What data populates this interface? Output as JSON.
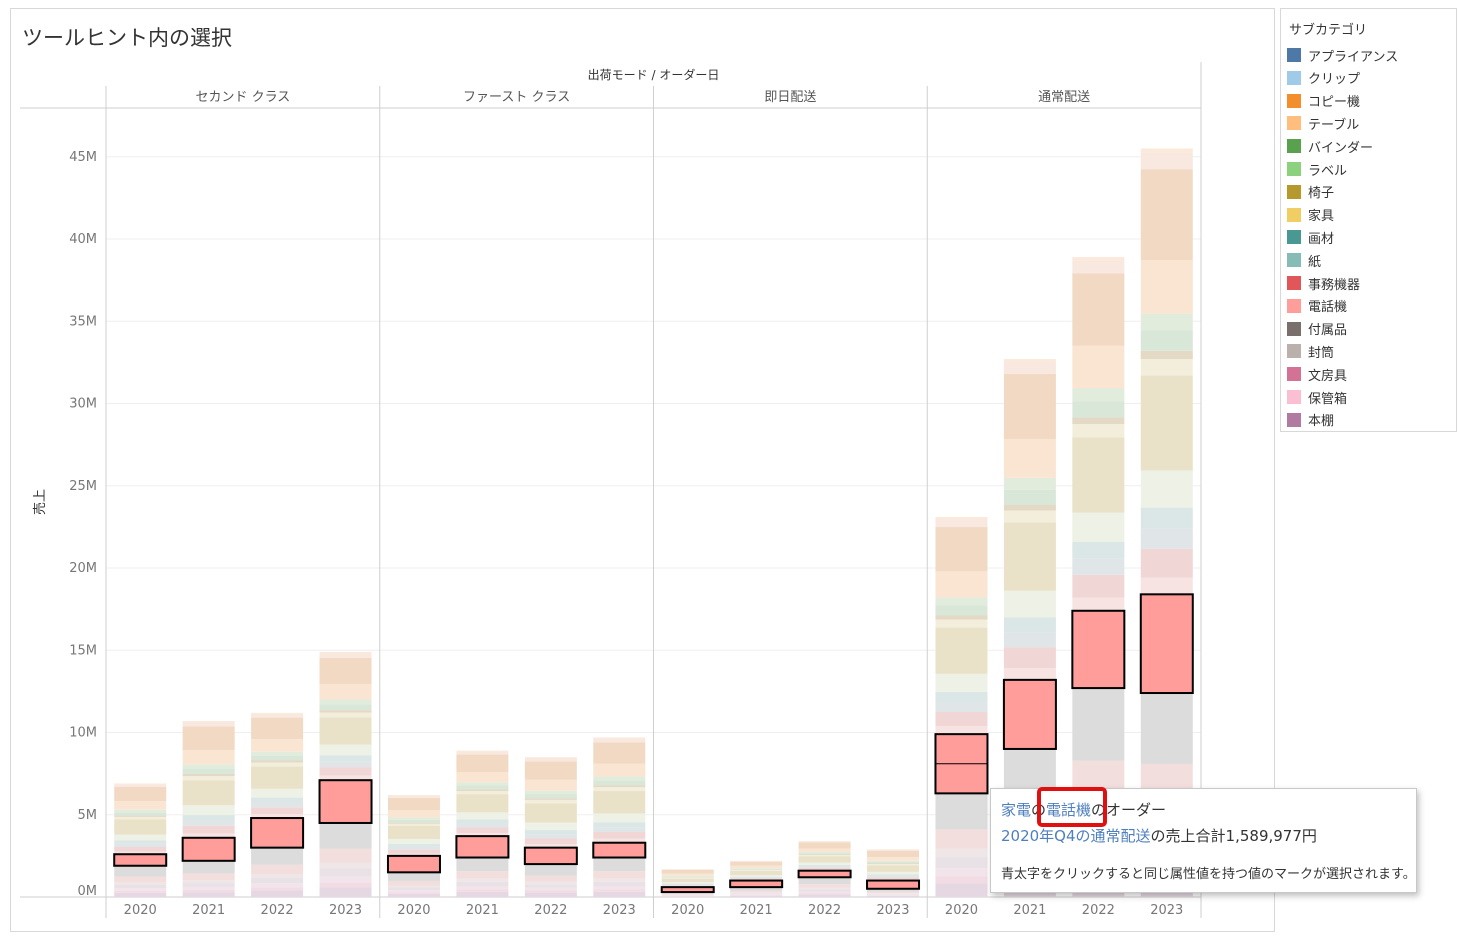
{
  "title": "ツールヒント内の選択",
  "legend": {
    "title": "サブカテゴリ",
    "items": [
      {
        "label": "アプライアンス",
        "color": "#4e79a7"
      },
      {
        "label": "クリップ",
        "color": "#a0cbe8"
      },
      {
        "label": "コピー機",
        "color": "#f28e2b"
      },
      {
        "label": "テーブル",
        "color": "#ffbe7d"
      },
      {
        "label": "バインダー",
        "color": "#59a14f"
      },
      {
        "label": "ラベル",
        "color": "#8cd17d"
      },
      {
        "label": "椅子",
        "color": "#b6992d"
      },
      {
        "label": "家具",
        "color": "#f1ce63"
      },
      {
        "label": "画材",
        "color": "#499894"
      },
      {
        "label": "紙",
        "color": "#86bcb6"
      },
      {
        "label": "事務機器",
        "color": "#e15759"
      },
      {
        "label": "電話機",
        "color": "#ff9d9a"
      },
      {
        "label": "付属品",
        "color": "#79706e"
      },
      {
        "label": "封筒",
        "color": "#bab0ac"
      },
      {
        "label": "文房具",
        "color": "#d37295"
      },
      {
        "label": "保管箱",
        "color": "#fabfd2"
      },
      {
        "label": "本棚",
        "color": "#b07aa1"
      }
    ]
  },
  "tooltip": {
    "l1_a": "家電",
    "l1_b": "の",
    "l1_c": "電話機",
    "l1_d": "のオーダー",
    "l2_a": "2020年Q4の",
    "l2_b": "通常配送",
    "l2_c": "の売上合計1,589,977円",
    "l3": "青太字をクリックすると同じ属性値を持つ値のマークが選択されます。"
  },
  "chart_data": {
    "type": "bar",
    "stacked": true,
    "header": "出荷モード / オーダー日",
    "ylabel": "売上",
    "ylim": [
      0,
      48000000
    ],
    "yticks": [
      "0M",
      "5M",
      "10M",
      "15M",
      "20M",
      "25M",
      "30M",
      "35M",
      "40M",
      "45M"
    ],
    "panels": [
      {
        "name": "セカンド クラス",
        "years": [
          "2020",
          "2021",
          "2022",
          "2023"
        ],
        "totals": [
          6900000,
          10700000,
          11200000,
          14900000
        ],
        "highlight": [
          [
            1900000,
            2600000
          ],
          [
            2200000,
            3600000
          ],
          [
            3000000,
            4800000
          ],
          [
            4500000,
            7100000
          ]
        ]
      },
      {
        "name": "ファースト クラス",
        "years": [
          "2020",
          "2021",
          "2022",
          "2023"
        ],
        "totals": [
          6200000,
          8900000,
          8500000,
          9700000
        ],
        "highlight": [
          [
            1500000,
            2500000
          ],
          [
            2400000,
            3700000
          ],
          [
            2000000,
            3000000
          ],
          [
            2400000,
            3300000
          ]
        ]
      },
      {
        "name": "即日配送",
        "years": [
          "2020",
          "2021",
          "2022",
          "2023"
        ],
        "totals": [
          1700000,
          2200000,
          3400000,
          2900000
        ],
        "highlight": [
          [
            300000,
            600000
          ],
          [
            600000,
            1000000
          ],
          [
            1200000,
            1600000
          ],
          [
            500000,
            1000000
          ]
        ]
      },
      {
        "name": "通常配送",
        "years": [
          "2020",
          "2021",
          "2022",
          "2023"
        ],
        "totals": [
          23100000,
          32700000,
          38900000,
          45500000
        ],
        "highlight": [
          [
            6300000,
            9900000
          ],
          [
            9000000,
            13200000
          ],
          [
            12700000,
            17400000
          ],
          [
            12400000,
            18400000
          ]
        ]
      }
    ]
  }
}
